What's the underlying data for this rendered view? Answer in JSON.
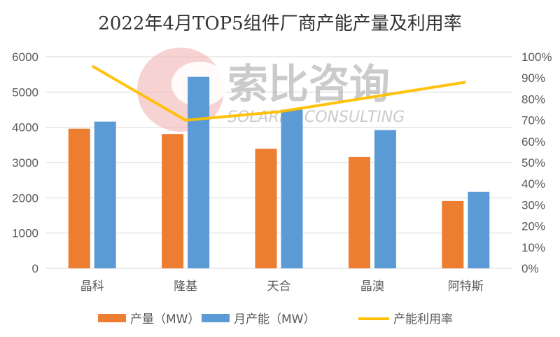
{
  "chart_data": {
    "type": "bar",
    "title": "2022年4月TOP5组件厂商产能产量及利用率",
    "categories": [
      "晶科",
      "隆基",
      "天合",
      "晶澳",
      "阿特斯"
    ],
    "series": [
      {
        "name": "产量（MW）",
        "type": "bar",
        "axis": "left",
        "color": "#ED7D31",
        "values": [
          3960,
          3810,
          3390,
          3160,
          1910
        ]
      },
      {
        "name": "月产能（MW）",
        "type": "bar",
        "axis": "left",
        "color": "#5B9BD5",
        "values": [
          4160,
          5430,
          4500,
          3920,
          2170
        ]
      },
      {
        "name": "产能利用率",
        "type": "line",
        "axis": "right",
        "color": "#FFC000",
        "values": [
          0.956,
          0.7,
          0.74,
          0.81,
          0.88
        ]
      }
    ],
    "ylim": [
      0,
      6000
    ],
    "yticks": [
      "0",
      "1000",
      "2000",
      "3000",
      "4000",
      "5000",
      "6000"
    ],
    "y2lim": [
      0,
      1
    ],
    "y2ticks": [
      "0%",
      "10%",
      "20%",
      "30%",
      "40%",
      "50%",
      "60%",
      "70%",
      "80%",
      "90%",
      "100%"
    ],
    "grid": true,
    "legend": "bottom"
  },
  "watermark": {
    "cn": "索比咨询",
    "en": "SOLARBE CONSULTING"
  }
}
